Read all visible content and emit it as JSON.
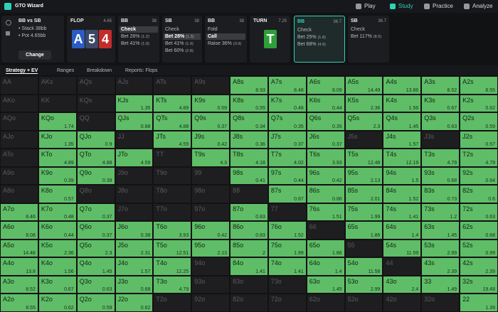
{
  "header": {
    "logo": "GTO Wizard",
    "nav": [
      "Play",
      "Study",
      "Practice",
      "Analyze"
    ],
    "active_nav": "Study"
  },
  "info": {
    "title": "BB vs SB",
    "stack": "• Stack 38bb",
    "pot": "• Pot 4.65bb",
    "button": "Change"
  },
  "flop": {
    "label": "FLOP",
    "pot": 4.65,
    "cards": [
      {
        "rank": "A",
        "color": "#2b5cc4"
      },
      {
        "rank": "5",
        "color": "#3d4a66"
      },
      {
        "rank": "4",
        "color": "#c42b2b"
      }
    ]
  },
  "actions_flop": [
    {
      "label": "BB",
      "stack": 38,
      "items": [
        {
          "text": "Check",
          "selected": true
        },
        {
          "text": "Bet 26%",
          "size": "(1.2)"
        },
        {
          "text": "Bet 41%",
          "size": "(1.9)"
        }
      ]
    },
    {
      "label": "SB",
      "stack": 38,
      "items": [
        {
          "text": "Check"
        },
        {
          "text": "Bet 28%",
          "size": "(1.3)",
          "selected": true
        },
        {
          "text": "Bet 41%",
          "size": "(1.9)"
        },
        {
          "text": "Bet 60%",
          "size": "(2.8)"
        }
      ]
    },
    {
      "label": "BB",
      "stack": 38,
      "items": [
        {
          "text": "Fold"
        },
        {
          "text": "Call",
          "selected": true
        },
        {
          "text": "Raise 36%",
          "size": "(3.9)"
        }
      ]
    }
  ],
  "turn": {
    "label": "TURN",
    "pot": 7.25,
    "card": {
      "rank": "T",
      "color": "#2e9e3a"
    }
  },
  "actions_turn": [
    {
      "label": "BB",
      "stack": 36.7,
      "active": true,
      "items": [
        {
          "text": "Check"
        },
        {
          "text": "Bet 25%",
          "size": "(1.8)"
        },
        {
          "text": "Bet 68%",
          "size": "(4.9)"
        }
      ]
    },
    {
      "label": "SB",
      "stack": 36.7,
      "items": [
        {
          "text": "Check"
        },
        {
          "text": "Bet 117%",
          "size": "(8.5)"
        }
      ]
    }
  ],
  "tabs": [
    "Strategy + EV",
    "Ranges",
    "Breakdown",
    "Reports: Flops"
  ],
  "grid": {
    "rows": [
      [
        {
          "hand": "AA"
        },
        {
          "hand": "AKs"
        },
        {
          "hand": "AQs"
        },
        {
          "hand": "AJs"
        },
        {
          "hand": "ATs"
        },
        {
          "hand": "A9s"
        },
        {
          "hand": "A8s",
          "ev": 8.93
        },
        {
          "hand": "A7s",
          "ev": 8.48
        },
        {
          "hand": "A6s",
          "ev": 8.09
        },
        {
          "hand": "A5s",
          "ev": 14.49
        },
        {
          "hand": "A4s",
          "ev": 13.86
        },
        {
          "hand": "A3s",
          "ev": 8.52
        },
        {
          "hand": "A2s",
          "ev": 8.55
        }
      ],
      [
        {
          "hand": "AKo"
        },
        {
          "hand": "KK"
        },
        {
          "hand": "KQs"
        },
        {
          "hand": "KJs",
          "ev": 1.35
        },
        {
          "hand": "KTs",
          "ev": 4.89
        },
        {
          "hand": "K9s",
          "ev": 0.59
        },
        {
          "hand": "K8s",
          "ev": 0.55
        },
        {
          "hand": "K7s",
          "ev": 0.48
        },
        {
          "hand": "K6s",
          "ev": 0.44
        },
        {
          "hand": "K5s",
          "ev": 2.36
        },
        {
          "hand": "K4s",
          "ev": 1.56
        },
        {
          "hand": "K3s",
          "ev": 0.67
        },
        {
          "hand": "K2s",
          "ev": 0.62
        }
      ],
      [
        {
          "hand": "AQo"
        },
        {
          "hand": "KQo",
          "ev": 1.74
        },
        {
          "hand": "QQ"
        },
        {
          "hand": "QJs",
          "ev": 0.88
        },
        {
          "hand": "QTs",
          "ev": 4.88
        },
        {
          "hand": "Q9s",
          "ev": 0.37
        },
        {
          "hand": "Q8s",
          "ev": 0.34
        },
        {
          "hand": "Q7s",
          "ev": 0.35
        },
        {
          "hand": "Q6s",
          "ev": 0.35
        },
        {
          "hand": "Q5s",
          "ev": 2.3
        },
        {
          "hand": "Q4s",
          "ev": 1.45
        },
        {
          "hand": "Q3s",
          "ev": 0.63
        },
        {
          "hand": "Q2s",
          "ev": 0.59
        }
      ],
      [
        {
          "hand": "AJo"
        },
        {
          "hand": "KJo",
          "ev": 1.35
        },
        {
          "hand": "QJo",
          "ev": 0.9
        },
        {
          "hand": "JJ"
        },
        {
          "hand": "JTs",
          "ev": 4.59
        },
        {
          "hand": "J9s",
          "ev": 0.42
        },
        {
          "hand": "J8s",
          "ev": 0.36
        },
        {
          "hand": "J7s",
          "ev": 0.37
        },
        {
          "hand": "J6s",
          "ev": 0.37
        },
        {
          "hand": "J5s"
        },
        {
          "hand": "J4s",
          "ev": 1.57
        },
        {
          "hand": "J3s"
        },
        {
          "hand": "J2s",
          "ev": 0.57
        }
      ],
      [
        {
          "hand": "ATo"
        },
        {
          "hand": "KTo",
          "ev": 4.89
        },
        {
          "hand": "QTo",
          "ev": 4.88
        },
        {
          "hand": "JTo",
          "ev": 4.59
        },
        {
          "hand": "TT"
        },
        {
          "hand": "T9s",
          "ev": 4.3
        },
        {
          "hand": "T8s",
          "ev": 4.18
        },
        {
          "hand": "T7s",
          "ev": 4.02
        },
        {
          "hand": "T6s",
          "ev": 3.93
        },
        {
          "hand": "T5s",
          "ev": 12.48
        },
        {
          "hand": "T4s",
          "ev": 12.19
        },
        {
          "hand": "T3s",
          "ev": 4.79
        },
        {
          "hand": "T2s",
          "ev": 4.79
        }
      ],
      [
        {
          "hand": "A9o"
        },
        {
          "hand": "K9o",
          "ev": 0.39
        },
        {
          "hand": "Q9o",
          "ev": 0.39
        },
        {
          "hand": "J9o"
        },
        {
          "hand": "T9o"
        },
        {
          "hand": "99"
        },
        {
          "hand": "98s",
          "ev": 0.41
        },
        {
          "hand": "97s",
          "ev": 0.44
        },
        {
          "hand": "96s",
          "ev": 0.42
        },
        {
          "hand": "95s",
          "ev": 2.13
        },
        {
          "hand": "94s",
          "ev": 1.5
        },
        {
          "hand": "93s",
          "ev": 0.68
        },
        {
          "hand": "92s",
          "ev": 0.64
        }
      ],
      [
        {
          "hand": "A8o"
        },
        {
          "hand": "K8o",
          "ev": 0.57
        },
        {
          "hand": "Q8o"
        },
        {
          "hand": "J8o"
        },
        {
          "hand": "T8o"
        },
        {
          "hand": "98o"
        },
        {
          "hand": "88"
        },
        {
          "hand": "87s",
          "ev": 0.87
        },
        {
          "hand": "86s",
          "ev": 0.86
        },
        {
          "hand": "85s",
          "ev": 2.01
        },
        {
          "hand": "84s",
          "ev": 1.52
        },
        {
          "hand": "83s",
          "ev": 0.73
        },
        {
          "hand": "82s",
          "ev": 0.6
        }
      ],
      [
        {
          "hand": "A7o",
          "ev": 8.46
        },
        {
          "hand": "K7o",
          "ev": 0.48
        },
        {
          "hand": "Q7o",
          "ev": 0.37
        },
        {
          "hand": "J7o"
        },
        {
          "hand": "T7o"
        },
        {
          "hand": "97o"
        },
        {
          "hand": "87o",
          "ev": 0.83
        },
        {
          "hand": "77"
        },
        {
          "hand": "76s",
          "ev": 1.51
        },
        {
          "hand": "75s",
          "ev": 1.99
        },
        {
          "hand": "74s",
          "ev": 1.41
        },
        {
          "hand": "73s",
          "ev": 1.2
        },
        {
          "hand": "72s",
          "ev": 0.63
        }
      ],
      [
        {
          "hand": "A6o",
          "ev": 8.08
        },
        {
          "hand": "K6o",
          "ev": 0.44
        },
        {
          "hand": "Q6o",
          "ev": 0.37
        },
        {
          "hand": "J6o",
          "ev": 0.38
        },
        {
          "hand": "T6o",
          "ev": 3.93
        },
        {
          "hand": "96o",
          "ev": 0.42
        },
        {
          "hand": "86o",
          "ev": 0.83
        },
        {
          "hand": "76o",
          "ev": 1.52
        },
        {
          "hand": "66"
        },
        {
          "hand": "65s",
          "ev": 1.86
        },
        {
          "hand": "64s",
          "ev": 1.4
        },
        {
          "hand": "63s",
          "ev": 1.45
        },
        {
          "hand": "62s",
          "ev": 0.68
        }
      ],
      [
        {
          "hand": "A5o",
          "ev": 14.48
        },
        {
          "hand": "K5o",
          "ev": 2.36
        },
        {
          "hand": "Q5o",
          "ev": 2.3
        },
        {
          "hand": "J5o",
          "ev": 2.31
        },
        {
          "hand": "T5o",
          "ev": 12.51
        },
        {
          "hand": "95o",
          "ev": 2.13
        },
        {
          "hand": "85o",
          "ev": 2
        },
        {
          "hand": "75o",
          "ev": 1.99
        },
        {
          "hand": "65o",
          "ev": 1.86
        },
        {
          "hand": "55"
        },
        {
          "hand": "54s",
          "ev": 11.59
        },
        {
          "hand": "53s",
          "ev": 2.99
        },
        {
          "hand": "52s",
          "ev": 0.99
        }
      ],
      [
        {
          "hand": "A4o",
          "ev": 13.8
        },
        {
          "hand": "K4o",
          "ev": 1.56
        },
        {
          "hand": "Q4o",
          "ev": 1.45
        },
        {
          "hand": "J4o",
          "ev": 1.57
        },
        {
          "hand": "T4o",
          "ev": 12.25
        },
        {
          "hand": "94o"
        },
        {
          "hand": "84o",
          "ev": 1.41
        },
        {
          "hand": "74o",
          "ev": 1.41
        },
        {
          "hand": "64o",
          "ev": 1.4
        },
        {
          "hand": "54o",
          "ev": 11.58
        },
        {
          "hand": "44"
        },
        {
          "hand": "43s",
          "ev": 2.39
        },
        {
          "hand": "42s",
          "ev": 2.39
        }
      ],
      [
        {
          "hand": "A3o",
          "ev": 8.52
        },
        {
          "hand": "K3o",
          "ev": 0.67
        },
        {
          "hand": "Q3o",
          "ev": 0.63
        },
        {
          "hand": "J3o",
          "ev": 0.68
        },
        {
          "hand": "T3o",
          "ev": 4.79
        },
        {
          "hand": "93o"
        },
        {
          "hand": "83o"
        },
        {
          "hand": "73o"
        },
        {
          "hand": "63o",
          "ev": 1.45
        },
        {
          "hand": "53o",
          "ev": 2.99
        },
        {
          "hand": "43o",
          "ev": 2.4
        },
        {
          "hand": "33",
          "ev": 1.49
        },
        {
          "hand": "32s",
          "ev": 19.48
        }
      ],
      [
        {
          "hand": "A2o",
          "ev": 8.55
        },
        {
          "hand": "K2o",
          "ev": 0.62
        },
        {
          "hand": "Q2o",
          "ev": 0.59
        },
        {
          "hand": "J2o",
          "ev": 0.62
        },
        {
          "hand": "T2o"
        },
        {
          "hand": "92o"
        },
        {
          "hand": "82o"
        },
        {
          "hand": "72o"
        },
        {
          "hand": "62o"
        },
        {
          "hand": "52o"
        },
        {
          "hand": "42o"
        },
        {
          "hand": "32o"
        },
        {
          "hand": "22",
          "ev": 1.39
        }
      ]
    ]
  }
}
